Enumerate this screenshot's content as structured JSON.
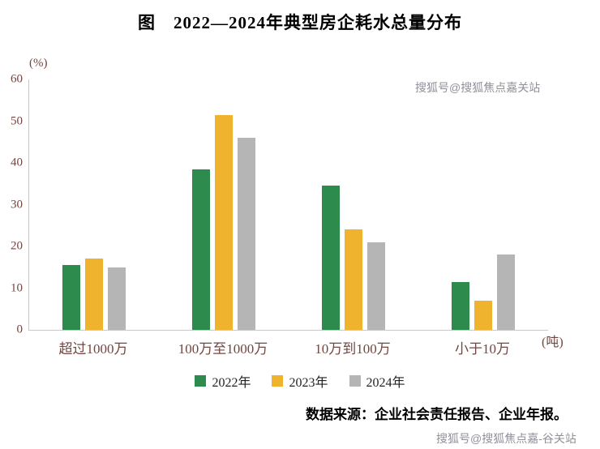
{
  "page": {
    "title": "图　2022—2024年典型房企耗水总量分布",
    "source": "数据来源：企业社会责任报告、企业年报。",
    "watermark_top": "搜狐号@搜狐焦点嘉关站",
    "watermark_bottom": "搜狐号@搜狐焦点嘉-谷关站"
  },
  "chart_data": {
    "type": "bar",
    "title": "图　2022—2024年典型房企耗水总量分布",
    "y_unit": "(%)",
    "x_unit": "(吨)",
    "ylabel": "",
    "xlabel": "",
    "ylim": [
      0,
      60
    ],
    "yticks": [
      0,
      10,
      20,
      30,
      40,
      50,
      60
    ],
    "grid": false,
    "legend_position": "bottom",
    "categories": [
      "超过1000万",
      "100万至1000万",
      "10万到100万",
      "小于10万"
    ],
    "series": [
      {
        "name": "2022年",
        "color": "#2e8b4e",
        "values": [
          15.5,
          38.5,
          34.5,
          11.5
        ]
      },
      {
        "name": "2023年",
        "color": "#f0b32e",
        "values": [
          17,
          51.5,
          24,
          7
        ]
      },
      {
        "name": "2024年",
        "color": "#b5b5b5",
        "values": [
          15,
          46,
          21,
          18
        ]
      }
    ],
    "text_color": "#74463e",
    "axis_color": "#c9c9c9",
    "source": "数据来源：企业社会责任报告、企业年报。"
  }
}
